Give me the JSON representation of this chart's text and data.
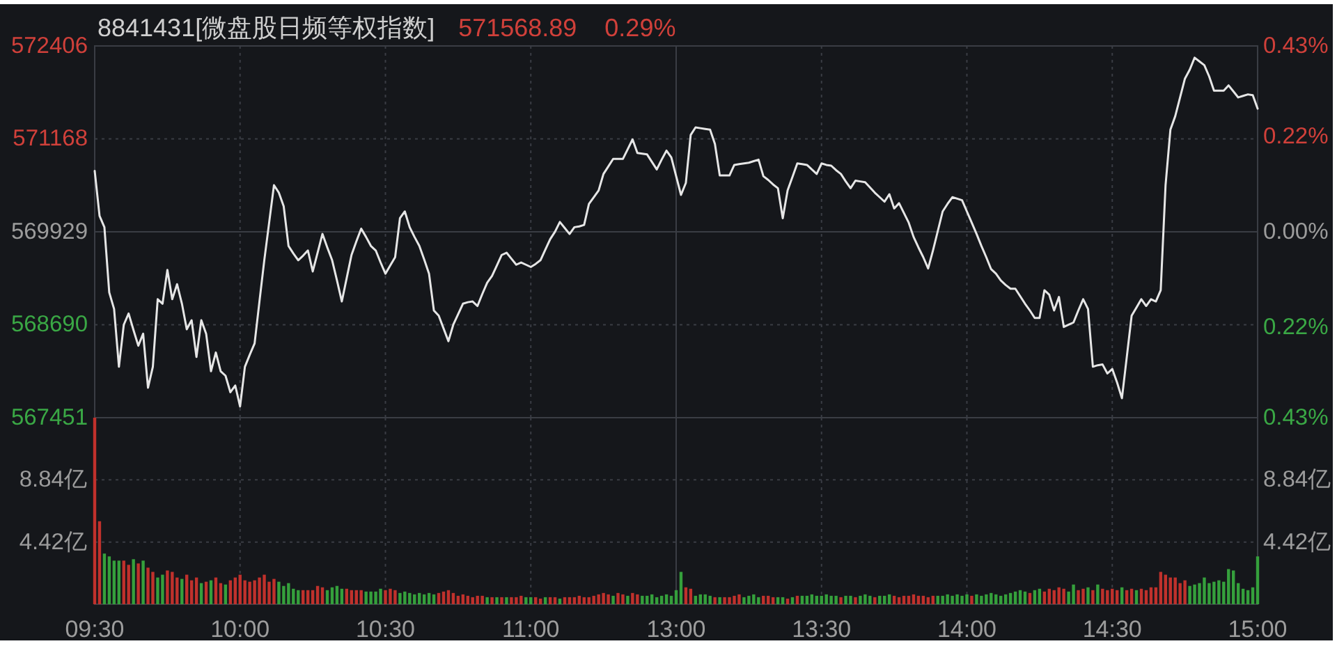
{
  "chart_data": [
    {
      "type": "line",
      "title": "8841431[微盘股日频等权指数]",
      "annotations": [
        "571568.89",
        "0.29%"
      ],
      "categories": [
        null,
        null,
        null,
        null,
        null,
        null,
        null,
        null,
        null,
        null,
        null,
        null,
        null,
        null,
        null,
        null,
        null,
        null,
        null,
        null,
        null,
        null,
        null,
        null,
        null,
        null,
        null,
        null,
        null,
        null,
        null,
        null,
        null,
        null,
        null,
        null,
        null,
        null,
        null,
        null,
        null,
        null,
        null,
        null,
        null,
        null,
        null,
        null,
        null,
        null,
        null,
        null,
        null,
        null,
        null,
        null,
        null,
        null,
        null,
        null,
        null,
        null,
        null,
        null,
        null,
        null,
        null,
        null,
        null,
        null,
        null,
        null,
        null,
        null,
        null,
        null,
        null,
        null,
        null,
        null,
        null,
        null,
        null,
        null,
        null,
        null,
        null,
        null,
        null,
        null,
        null,
        null,
        null,
        null,
        null,
        null,
        null,
        null,
        null,
        null,
        null,
        null,
        null,
        null,
        null,
        null,
        null,
        null,
        null,
        null,
        null,
        null,
        null,
        null,
        null,
        null,
        null,
        null,
        null,
        null,
        null,
        null,
        null,
        null,
        null,
        null,
        null,
        null,
        null,
        null,
        null,
        null,
        null,
        null,
        null,
        null,
        null,
        null,
        null,
        null,
        null,
        null,
        null,
        null,
        null,
        null,
        null,
        null,
        null,
        null,
        null,
        null,
        null,
        null,
        null,
        null,
        null,
        null,
        null,
        null,
        null,
        null,
        null,
        null,
        null,
        null,
        null,
        null,
        null,
        null,
        null,
        null,
        null,
        null,
        null,
        null,
        null,
        null,
        null,
        null,
        null,
        null,
        null,
        null,
        null,
        null,
        null,
        null,
        null,
        null,
        null,
        null,
        null,
        null,
        null,
        null,
        null,
        null,
        null,
        null,
        null,
        null,
        null,
        null,
        null,
        null,
        null,
        null,
        null,
        null,
        null,
        null,
        null,
        null,
        null,
        null,
        null,
        null,
        null,
        null,
        null,
        null,
        null,
        null,
        null,
        null,
        null,
        null,
        null,
        null,
        null,
        null,
        null,
        null,
        null,
        null,
        null,
        null,
        null,
        null,
        null
      ],
      "series": [
        {
          "color": "#e6e6e6",
          "values": [
            570740,
            570140,
            569990,
            569120,
            568900,
            568130,
            568690,
            568840,
            568620,
            568410,
            568570,
            567850,
            568130,
            569030,
            568970,
            569420,
            569030,
            569230,
            568970,
            568630,
            568750,
            568260,
            568750,
            568570,
            568070,
            568320,
            568070,
            568010,
            567790,
            567880,
            567600,
            568130,
            568290,
            568440,
            569000,
            569550,
            570050,
            570550,
            570450,
            570270,
            569740,
            569640,
            569550,
            569610,
            569680,
            569400,
            569650,
            569900,
            569720,
            569550,
            569280,
            569000,
            569310,
            569620,
            569800,
            569970,
            569860,
            569740,
            569680,
            569520,
            569370,
            569480,
            569590,
            570110,
            570200,
            569990,
            569860,
            569740,
            569560,
            569370,
            568880,
            568810,
            568640,
            568470,
            568690,
            568830,
            568970,
            568990,
            569000,
            568940,
            569100,
            569250,
            569340,
            569480,
            569620,
            569650,
            569570,
            569490,
            569520,
            569490,
            569460,
            569500,
            569550,
            569690,
            569830,
            569930,
            570060,
            569980,
            569900,
            569990,
            570000,
            570020,
            570300,
            570390,
            570480,
            570700,
            570800,
            570900,
            570900,
            570900,
            571030,
            571160,
            570980,
            570970,
            570960,
            570860,
            570760,
            570890,
            571010,
            570920,
            570670,
            570420,
            570580,
            571220,
            571320,
            571310,
            571300,
            571290,
            571100,
            570680,
            570680,
            570680,
            570820,
            570830,
            570840,
            570850,
            570870,
            570890,
            570670,
            570620,
            570560,
            570510,
            570110,
            570480,
            570660,
            570840,
            570830,
            570820,
            570760,
            570700,
            570840,
            570820,
            570810,
            570750,
            570700,
            570600,
            570510,
            570610,
            570600,
            570590,
            570520,
            570450,
            570390,
            570330,
            570430,
            570240,
            570310,
            570180,
            570050,
            569860,
            569720,
            569590,
            569440,
            569680,
            569940,
            570200,
            570300,
            570390,
            570370,
            570350,
            570200,
            570050,
            569900,
            569740,
            569590,
            569430,
            569370,
            569280,
            569220,
            569170,
            569170,
            569070,
            568970,
            568880,
            568780,
            568780,
            569150,
            569090,
            568880,
            569060,
            568660,
            568690,
            568720,
            568880,
            569030,
            568900,
            568130,
            568150,
            568160,
            568040,
            568100,
            567920,
            567710,
            568260,
            568810,
            568920,
            569030,
            568940,
            569030,
            569000,
            569150,
            570550,
            571290,
            571470,
            571720,
            571970,
            572090,
            572250,
            572200,
            572150,
            572000,
            571810,
            571810,
            571810,
            571880,
            571800,
            571720,
            571740,
            571760,
            571750,
            571570
          ]
        }
      ],
      "ylim": [
        567451,
        572406
      ],
      "yticks": [
        567451,
        568690,
        569929,
        571168,
        572406
      ],
      "y2lim": [
        -0.43,
        0.43
      ],
      "y2ticks": [
        {
          "value": -0.43,
          "label": "0.43%"
        },
        {
          "value": -0.22,
          "label": "0.22%"
        },
        {
          "value": 0,
          "label": "0.00%"
        },
        {
          "value": 0.22,
          "label": "0.22%"
        },
        {
          "value": 0.43,
          "label": "0.43%"
        }
      ],
      "grid": true,
      "tick_labels": "y"
    },
    {
      "type": "bar",
      "categories": [
        "09:30",
        null,
        null,
        null,
        null,
        null,
        null,
        null,
        null,
        null,
        null,
        null,
        null,
        null,
        null,
        null,
        null,
        null,
        null,
        null,
        null,
        null,
        null,
        null,
        null,
        null,
        null,
        null,
        null,
        null,
        "10:00",
        null,
        null,
        null,
        null,
        null,
        null,
        null,
        null,
        null,
        null,
        null,
        null,
        null,
        null,
        null,
        null,
        null,
        null,
        null,
        null,
        null,
        null,
        null,
        null,
        null,
        null,
        null,
        null,
        null,
        "10:30",
        null,
        null,
        null,
        null,
        null,
        null,
        null,
        null,
        null,
        null,
        null,
        null,
        null,
        null,
        null,
        null,
        null,
        null,
        null,
        null,
        null,
        null,
        null,
        null,
        null,
        null,
        null,
        null,
        null,
        "11:00",
        null,
        null,
        null,
        null,
        null,
        null,
        null,
        null,
        null,
        null,
        null,
        null,
        null,
        null,
        null,
        null,
        null,
        null,
        null,
        null,
        null,
        null,
        null,
        null,
        null,
        null,
        null,
        null,
        null,
        "13:00",
        null,
        null,
        null,
        null,
        null,
        null,
        null,
        null,
        null,
        null,
        null,
        null,
        null,
        null,
        null,
        null,
        null,
        null,
        null,
        null,
        null,
        null,
        null,
        null,
        null,
        null,
        null,
        null,
        null,
        "13:30",
        null,
        null,
        null,
        null,
        null,
        null,
        null,
        null,
        null,
        null,
        null,
        null,
        null,
        null,
        null,
        null,
        null,
        null,
        null,
        null,
        null,
        null,
        null,
        null,
        null,
        null,
        null,
        null,
        null,
        "14:00",
        null,
        null,
        null,
        null,
        null,
        null,
        null,
        null,
        null,
        null,
        null,
        null,
        null,
        null,
        null,
        null,
        null,
        null,
        null,
        null,
        null,
        null,
        null,
        null,
        null,
        null,
        null,
        null,
        null,
        "14:30",
        null,
        null,
        null,
        null,
        null,
        null,
        null,
        null,
        null,
        null,
        null,
        null,
        null,
        null,
        null,
        null,
        null,
        null,
        null,
        null,
        null,
        null,
        null,
        null,
        null,
        null,
        null,
        null,
        null,
        "15:00"
      ],
      "values": [
        13.26,
        5.9,
        3.6,
        3.4,
        3.1,
        3.1,
        3.1,
        2.8,
        3.2,
        2.9,
        3.1,
        2.6,
        2.3,
        1.9,
        2.1,
        2.4,
        2.3,
        1.9,
        1.8,
        2.1,
        1.7,
        1.9,
        1.5,
        1.6,
        1.7,
        1.9,
        1.5,
        1.4,
        1.7,
        1.9,
        2.1,
        1.7,
        1.6,
        1.7,
        1.9,
        2.1,
        1.6,
        1.8,
        1.6,
        1.3,
        1.5,
        1.1,
        1.0,
        1.0,
        1.0,
        1.0,
        1.3,
        1.2,
        1.0,
        1.2,
        1.3,
        1.1,
        1.1,
        1.0,
        1.0,
        1.0,
        0.9,
        0.9,
        0.9,
        1.1,
        1.0,
        1.1,
        1.0,
        0.8,
        0.9,
        0.8,
        0.7,
        0.8,
        0.7,
        0.8,
        0.7,
        0.8,
        0.9,
        1.0,
        0.8,
        0.6,
        0.7,
        0.6,
        0.5,
        0.6,
        0.6,
        0.5,
        0.5,
        0.5,
        0.5,
        0.5,
        0.5,
        0.5,
        0.6,
        0.5,
        0.5,
        0.5,
        0.4,
        0.5,
        0.5,
        0.5,
        0.4,
        0.5,
        0.5,
        0.5,
        0.6,
        0.5,
        0.5,
        0.6,
        0.7,
        0.8,
        0.7,
        0.6,
        0.8,
        0.7,
        0.6,
        0.8,
        0.7,
        0.6,
        0.6,
        0.7,
        0.5,
        0.6,
        0.7,
        0.6,
        1.0,
        2.3,
        1.2,
        1.1,
        0.6,
        0.7,
        0.7,
        0.6,
        0.5,
        0.5,
        0.5,
        0.5,
        0.6,
        0.7,
        0.5,
        0.6,
        0.7,
        0.5,
        0.6,
        0.6,
        0.5,
        0.5,
        0.5,
        0.4,
        0.5,
        0.6,
        0.6,
        0.6,
        0.7,
        0.6,
        0.6,
        0.7,
        0.6,
        0.6,
        0.5,
        0.6,
        0.6,
        0.5,
        0.6,
        0.7,
        0.6,
        0.5,
        0.6,
        0.6,
        0.7,
        0.6,
        0.5,
        0.6,
        0.6,
        0.7,
        0.6,
        0.6,
        0.5,
        0.6,
        0.6,
        0.6,
        0.7,
        0.6,
        0.7,
        0.6,
        0.7,
        0.6,
        0.7,
        0.6,
        0.7,
        0.8,
        0.7,
        0.6,
        0.7,
        0.8,
        0.9,
        1.0,
        0.9,
        0.8,
        1.0,
        1.1,
        0.9,
        1.1,
        1.0,
        1.2,
        1.1,
        0.9,
        1.4,
        1.0,
        1.1,
        1.2,
        1.0,
        1.4,
        1.1,
        1.0,
        1.1,
        1.0,
        1.2,
        1.0,
        1.1,
        1.0,
        1.1,
        1.0,
        1.2,
        1.2,
        2.3,
        2.1,
        1.9,
        1.9,
        1.5,
        1.7,
        1.3,
        1.4,
        1.5,
        1.9,
        1.5,
        1.6,
        1.7,
        1.6,
        2.5,
        2.4,
        1.5,
        1.1,
        1.0,
        1.2,
        3.4
      ],
      "colors": [
        "#c0312c",
        "#c0312c",
        "#35a03c",
        "#35a03c",
        "#35a03c",
        "#35a03c",
        "#c0312c",
        "#c0312c",
        "#35a03c",
        "#c0312c",
        "#35a03c",
        "#c0312c",
        "#c0312c",
        "#35a03c",
        "#35a03c",
        "#c0312c",
        "#c0312c",
        "#c0312c",
        "#35a03c",
        "#c0312c",
        "#c0312c",
        "#c0312c",
        "#35a03c",
        "#c0312c",
        "#35a03c",
        "#c0312c",
        "#c0312c",
        "#35a03c",
        "#c0312c",
        "#c0312c",
        "#c0312c",
        "#c0312c",
        "#c0312c",
        "#c0312c",
        "#c0312c",
        "#c0312c",
        "#c0312c",
        "#c0312c",
        "#35a03c",
        "#35a03c",
        "#35a03c",
        "#35a03c",
        "#35a03c",
        "#c0312c",
        "#c0312c",
        "#c0312c",
        "#c0312c",
        "#c0312c",
        "#35a03c",
        "#35a03c",
        "#35a03c",
        "#35a03c",
        "#c0312c",
        "#c0312c",
        "#c0312c",
        "#c0312c",
        "#35a03c",
        "#35a03c",
        "#35a03c",
        "#35a03c",
        "#c0312c",
        "#c0312c",
        "#c0312c",
        "#35a03c",
        "#35a03c",
        "#35a03c",
        "#35a03c",
        "#35a03c",
        "#35a03c",
        "#35a03c",
        "#35a03c",
        "#c0312c",
        "#c0312c",
        "#c0312c",
        "#c0312c",
        "#c0312c",
        "#c0312c",
        "#c0312c",
        "#c0312c",
        "#c0312c",
        "#c0312c",
        "#35a03c",
        "#c0312c",
        "#35a03c",
        "#c0312c",
        "#35a03c",
        "#c0312c",
        "#c0312c",
        "#c0312c",
        "#35a03c",
        "#35a03c",
        "#c0312c",
        "#c0312c",
        "#35a03c",
        "#c0312c",
        "#c0312c",
        "#35a03c",
        "#c0312c",
        "#c0312c",
        "#c0312c",
        "#c0312c",
        "#c0312c",
        "#c0312c",
        "#c0312c",
        "#c0312c",
        "#c0312c",
        "#c0312c",
        "#35a03c",
        "#c0312c",
        "#c0312c",
        "#35a03c",
        "#c0312c",
        "#c0312c",
        "#35a03c",
        "#35a03c",
        "#35a03c",
        "#35a03c",
        "#35a03c",
        "#35a03c",
        "#35a03c",
        "#35a03c",
        "#35a03c",
        "#c0312c",
        "#c0312c",
        "#35a03c",
        "#35a03c",
        "#35a03c",
        "#35a03c",
        "#c0312c",
        "#35a03c",
        "#c0312c",
        "#c0312c",
        "#c0312c",
        "#c0312c",
        "#35a03c",
        "#35a03c",
        "#35a03c",
        "#35a03c",
        "#c0312c",
        "#c0312c",
        "#c0312c",
        "#35a03c",
        "#35a03c",
        "#c0312c",
        "#35a03c",
        "#c0312c",
        "#35a03c",
        "#35a03c",
        "#35a03c",
        "#35a03c",
        "#35a03c",
        "#35a03c",
        "#35a03c",
        "#35a03c",
        "#c0312c",
        "#35a03c",
        "#35a03c",
        "#c0312c",
        "#35a03c",
        "#35a03c",
        "#35a03c",
        "#c0312c",
        "#35a03c",
        "#35a03c",
        "#35a03c",
        "#c0312c",
        "#c0312c",
        "#c0312c",
        "#c0312c",
        "#c0312c",
        "#c0312c",
        "#c0312c",
        "#c0312c",
        "#c0312c",
        "#35a03c",
        "#35a03c",
        "#35a03c",
        "#35a03c",
        "#35a03c",
        "#35a03c",
        "#35a03c",
        "#c0312c",
        "#35a03c",
        "#35a03c",
        "#35a03c",
        "#35a03c",
        "#35a03c",
        "#35a03c",
        "#35a03c",
        "#35a03c",
        "#35a03c",
        "#35a03c",
        "#35a03c",
        "#c0312c",
        "#35a03c",
        "#35a03c",
        "#c0312c",
        "#c0312c",
        "#c0312c",
        "#c0312c",
        "#c0312c",
        "#35a03c",
        "#35a03c",
        "#c0312c",
        "#c0312c",
        "#35a03c",
        "#c0312c",
        "#35a03c",
        "#c0312c",
        "#c0312c",
        "#c0312c",
        "#c0312c",
        "#35a03c",
        "#c0312c",
        "#c0312c",
        "#35a03c",
        "#c0312c",
        "#c0312c",
        "#c0312c",
        "#c0312c",
        "#c0312c",
        "#c0312c",
        "#c0312c",
        "#c0312c",
        "#c0312c",
        "#c0312c",
        "#35a03c",
        "#35a03c",
        "#35a03c",
        "#35a03c",
        "#35a03c",
        "#35a03c",
        "#35a03c",
        "#35a03c",
        "#35a03c",
        "#35a03c",
        "#35a03c",
        "#35a03c",
        "#35a03c",
        "#35a03c",
        "#35a03c"
      ],
      "ylim": [
        0,
        13.26
      ],
      "yticks": [
        {
          "value": 4.42,
          "label": "4.42亿"
        },
        {
          "value": 8.84,
          "label": "8.84亿"
        }
      ],
      "y2lim": [
        0,
        13.26
      ],
      "y2ticks": [
        {
          "value": 4.42,
          "label": "4.42亿"
        },
        {
          "value": 8.84,
          "label": "8.84亿"
        }
      ],
      "grid": true
    }
  ]
}
